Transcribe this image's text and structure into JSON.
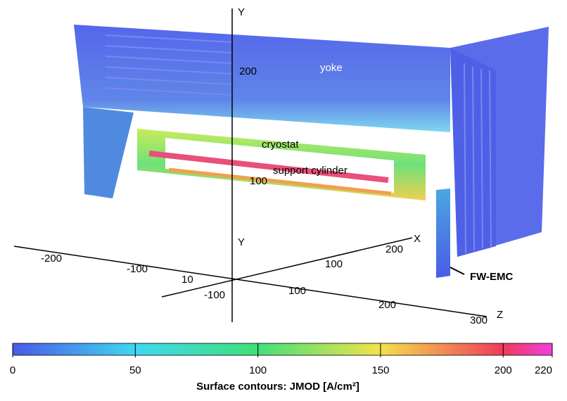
{
  "labels": {
    "yoke": "yoke",
    "cryostat": "cryostat",
    "support_cylinder": "support cylinder",
    "fw_emc": "FW-EMC"
  },
  "axes": {
    "y_upper": {
      "name": "Y",
      "ticks": [
        "200",
        "100"
      ]
    },
    "y_lower": {
      "name": "Y"
    },
    "x": {
      "name": "X",
      "ticks": [
        "-100",
        "10",
        "100",
        "200"
      ]
    },
    "z": {
      "name": "Z",
      "ticks": [
        "-200",
        "-100",
        "100",
        "200",
        "300"
      ]
    }
  },
  "colorbar": {
    "title": "Surface contours: JMOD [A/cm²]",
    "range": [
      0,
      220
    ],
    "ticks": [
      0,
      50,
      100,
      150,
      200,
      220
    ]
  }
}
